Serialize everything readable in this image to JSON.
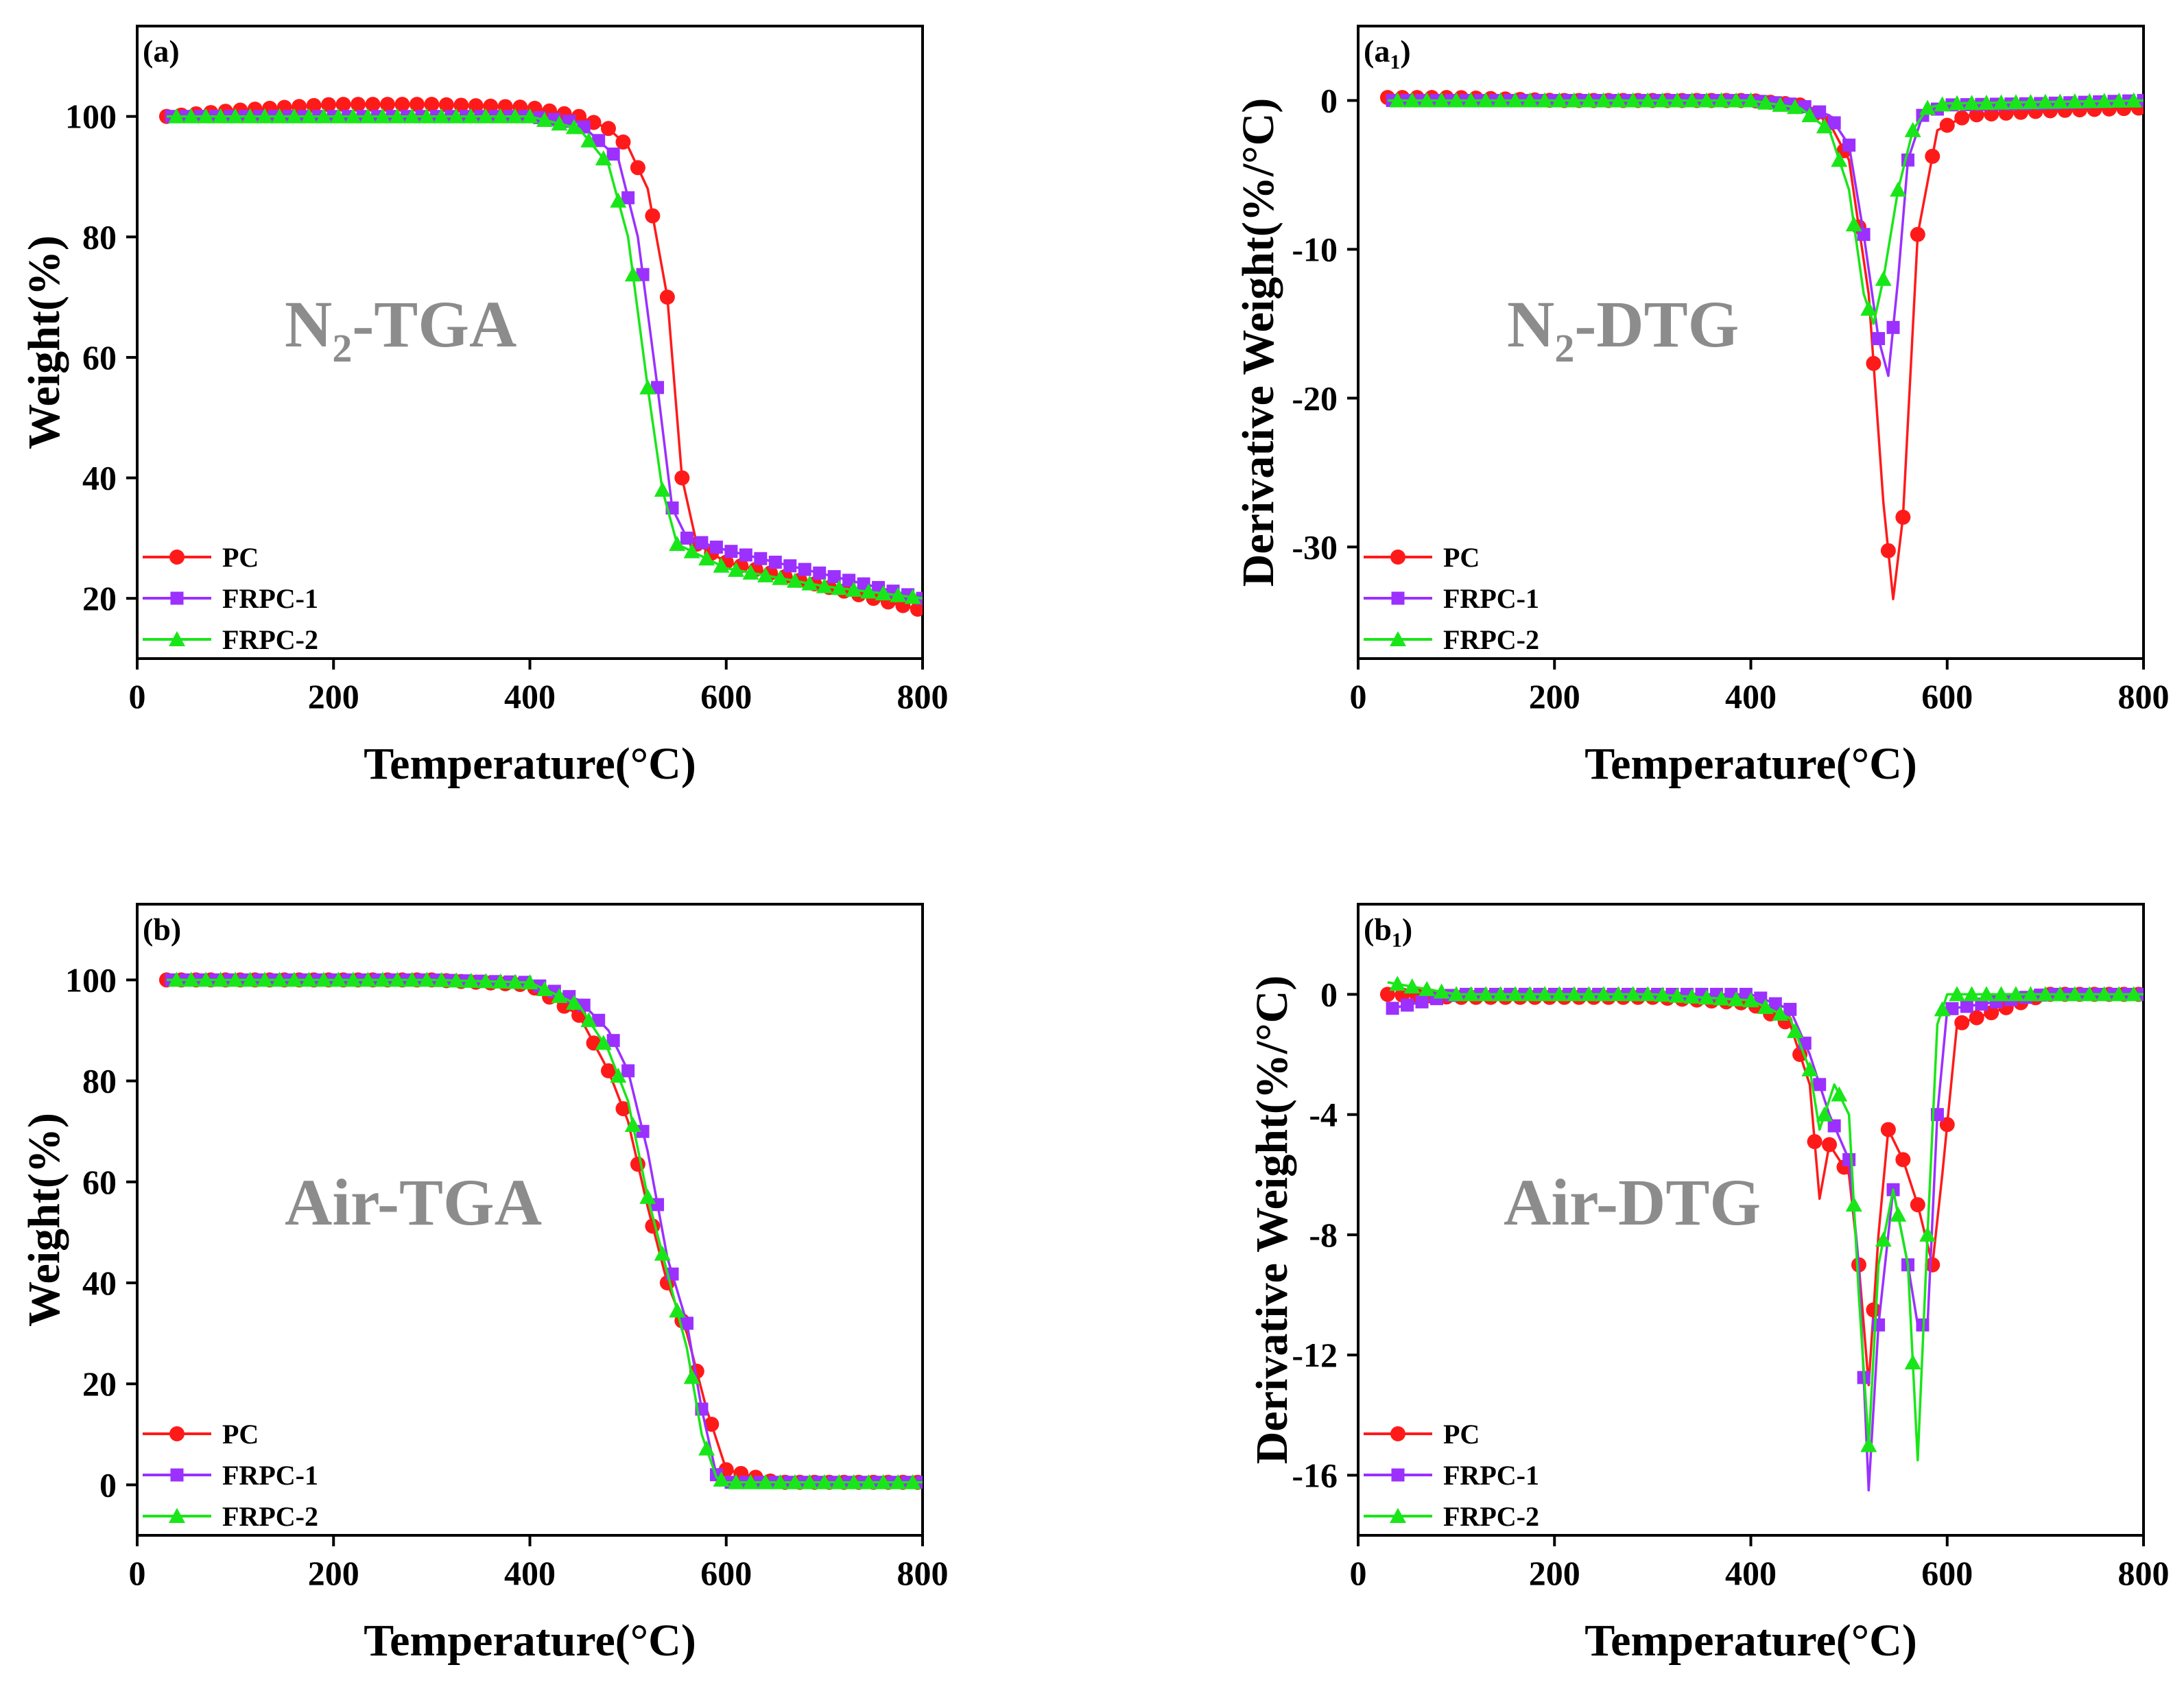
{
  "figure": {
    "panels": [
      {
        "label": "(a)",
        "label_sub": "",
        "label_close": "",
        "watermark_main": "N",
        "watermark_sub": "2",
        "watermark_rest": "-TGA"
      },
      {
        "label": "(a",
        "label_sub": "1",
        "label_close": ")",
        "watermark_main": "N",
        "watermark_sub": "2",
        "watermark_rest": "-DTG"
      },
      {
        "label": "(b)",
        "label_sub": "",
        "label_close": "",
        "watermark_main": "Air-TGA",
        "watermark_sub": "",
        "watermark_rest": ""
      },
      {
        "label": "(b",
        "label_sub": "1",
        "label_close": ")",
        "watermark_main": "Air-DTG",
        "watermark_sub": "",
        "watermark_rest": ""
      }
    ]
  },
  "colors": {
    "PC": "#ff1a1a",
    "FRPC-1": "#9b30ff",
    "FRPC-2": "#19e619"
  },
  "chart_data": [
    {
      "type": "line",
      "title": "N2-TGA",
      "xlabel": "Temperature(°C)",
      "ylabel": "Weight(%)",
      "xlim": [
        0,
        800
      ],
      "ylim": [
        10,
        115
      ],
      "xticks": [
        0,
        200,
        400,
        600,
        800
      ],
      "yticks": [
        20,
        40,
        60,
        80,
        100
      ],
      "legend": [
        "PC",
        "FRPC-1",
        "FRPC-2"
      ],
      "legend_position": "bottom-left",
      "series": [
        {
          "name": "PC",
          "marker": "circle",
          "x": [
            30,
            100,
            200,
            300,
            400,
            450,
            480,
            500,
            520,
            540,
            555,
            570,
            600,
            700,
            800
          ],
          "y": [
            100,
            101,
            102,
            102,
            101.5,
            100,
            98,
            95,
            88,
            70,
            40,
            29,
            26,
            22,
            18
          ]
        },
        {
          "name": "FRPC-1",
          "marker": "square",
          "x": [
            30,
            100,
            200,
            300,
            400,
            450,
            490,
            510,
            530,
            545,
            560,
            600,
            700,
            800
          ],
          "y": [
            100,
            100,
            100,
            100,
            100,
            99,
            93,
            80,
            55,
            35,
            30,
            28,
            24,
            20
          ]
        },
        {
          "name": "FRPC-2",
          "marker": "triangle",
          "x": [
            30,
            100,
            200,
            300,
            400,
            450,
            480,
            500,
            520,
            535,
            550,
            600,
            700,
            800
          ],
          "y": [
            100,
            100,
            100,
            100,
            100,
            98,
            92,
            80,
            55,
            38,
            29,
            25,
            22,
            20
          ]
        }
      ]
    },
    {
      "type": "line",
      "title": "N2-DTG",
      "xlabel": "Temperature(°C)",
      "ylabel": "Derivative Weight(%/°C)",
      "xlim": [
        0,
        800
      ],
      "ylim": [
        -37.5,
        5
      ],
      "xticks": [
        0,
        200,
        400,
        600,
        800
      ],
      "yticks": [
        0,
        -10,
        -20,
        -30
      ],
      "legend": [
        "PC",
        "FRPC-1",
        "FRPC-2"
      ],
      "legend_position": "bottom-left",
      "series": [
        {
          "name": "PC",
          "marker": "circle",
          "x": [
            30,
            100,
            200,
            300,
            400,
            450,
            480,
            500,
            520,
            535,
            545,
            555,
            570,
            590,
            620,
            700,
            800
          ],
          "y": [
            0.2,
            0.2,
            0,
            0,
            0,
            -0.3,
            -1.5,
            -4,
            -13,
            -27,
            -33.5,
            -28,
            -9,
            -2,
            -1,
            -0.7,
            -0.5
          ]
        },
        {
          "name": "FRPC-1",
          "marker": "square",
          "x": [
            30,
            100,
            200,
            300,
            400,
            450,
            480,
            500,
            515,
            530,
            540,
            550,
            560,
            575,
            600,
            700,
            800
          ],
          "y": [
            0,
            0,
            0,
            0,
            0,
            -0.3,
            -1,
            -3,
            -9,
            -16,
            -18.5,
            -12,
            -4,
            -1,
            -0.3,
            -0.2,
            0
          ]
        },
        {
          "name": "FRPC-2",
          "marker": "triangle",
          "x": [
            30,
            100,
            200,
            300,
            400,
            450,
            480,
            500,
            515,
            525,
            535,
            550,
            565,
            580,
            600,
            700,
            800
          ],
          "y": [
            0,
            0,
            0,
            0,
            0,
            -0.5,
            -2,
            -6,
            -13,
            -15,
            -12,
            -6,
            -2,
            -0.5,
            -0.2,
            -0.1,
            0
          ]
        }
      ]
    },
    {
      "type": "line",
      "title": "Air-TGA",
      "xlabel": "Temperature(°C)",
      "ylabel": "Weight(%)",
      "xlim": [
        0,
        800
      ],
      "ylim": [
        -10,
        115
      ],
      "xticks": [
        0,
        200,
        400,
        600,
        800
      ],
      "yticks": [
        0,
        20,
        40,
        60,
        80,
        100
      ],
      "legend": [
        "PC",
        "FRPC-1",
        "FRPC-2"
      ],
      "legend_position": "bottom-left",
      "series": [
        {
          "name": "PC",
          "marker": "circle",
          "x": [
            30,
            100,
            200,
            300,
            400,
            450,
            480,
            500,
            520,
            540,
            560,
            580,
            600,
            650,
            800
          ],
          "y": [
            100,
            100,
            100,
            100,
            99,
            93,
            82,
            72,
            55,
            40,
            30,
            15,
            3,
            0.5,
            0.5
          ]
        },
        {
          "name": "FRPC-1",
          "marker": "square",
          "x": [
            30,
            100,
            200,
            300,
            400,
            450,
            480,
            500,
            520,
            540,
            560,
            575,
            590,
            600,
            800
          ],
          "y": [
            100,
            100,
            100,
            100,
            99.5,
            96,
            90,
            82,
            66,
            45,
            32,
            15,
            2,
            0.5,
            0.5
          ]
        },
        {
          "name": "FRPC-2",
          "marker": "triangle",
          "x": [
            30,
            100,
            200,
            300,
            400,
            450,
            480,
            500,
            520,
            540,
            560,
            575,
            590,
            600,
            800
          ],
          "y": [
            100,
            100,
            100,
            100,
            99.5,
            95,
            86,
            76,
            57,
            42,
            27,
            10,
            1.5,
            0.5,
            0.5
          ]
        }
      ]
    },
    {
      "type": "line",
      "title": "Air-DTG",
      "xlabel": "Temperature(°C)",
      "ylabel": "Derivative Weight(%/°C)",
      "xlim": [
        0,
        800
      ],
      "ylim": [
        -18,
        3
      ],
      "xticks": [
        0,
        200,
        400,
        600,
        800
      ],
      "yticks": [
        0,
        -4,
        -8,
        -12,
        -16
      ],
      "legend": [
        "PC",
        "FRPC-1",
        "FRPC-2"
      ],
      "legend_position": "bottom-left",
      "series": [
        {
          "name": "PC",
          "marker": "circle",
          "x": [
            30,
            100,
            200,
            300,
            400,
            440,
            460,
            470,
            480,
            500,
            510,
            520,
            530,
            540,
            555,
            570,
            585,
            595,
            610,
            700,
            800
          ],
          "y": [
            0,
            -0.1,
            -0.1,
            -0.1,
            -0.3,
            -1,
            -3,
            -6.8,
            -5,
            -6,
            -9,
            -13,
            -8,
            -4.5,
            -5.5,
            -7,
            -9,
            -6,
            -1,
            0,
            0
          ]
        },
        {
          "name": "FRPC-1",
          "marker": "square",
          "x": [
            30,
            100,
            200,
            300,
            400,
            440,
            460,
            480,
            500,
            510,
            520,
            530,
            545,
            560,
            570,
            580,
            590,
            600,
            700,
            800
          ],
          "y": [
            -0.5,
            0,
            0,
            0,
            0,
            -0.5,
            -2,
            -4,
            -5.5,
            -9,
            -16.5,
            -11,
            -6.5,
            -9,
            -11,
            -11,
            -4,
            -0.5,
            0,
            0
          ]
        },
        {
          "name": "FRPC-2",
          "marker": "triangle",
          "x": [
            30,
            100,
            200,
            300,
            400,
            440,
            460,
            470,
            485,
            500,
            510,
            520,
            530,
            545,
            560,
            570,
            580,
            590,
            600,
            700,
            800
          ],
          "y": [
            0.4,
            0,
            0,
            0,
            -0.2,
            -0.8,
            -2.5,
            -4.5,
            -3,
            -4,
            -10,
            -15,
            -9,
            -6.5,
            -9,
            -15.5,
            -8,
            -1,
            0,
            0,
            0
          ]
        }
      ]
    }
  ]
}
